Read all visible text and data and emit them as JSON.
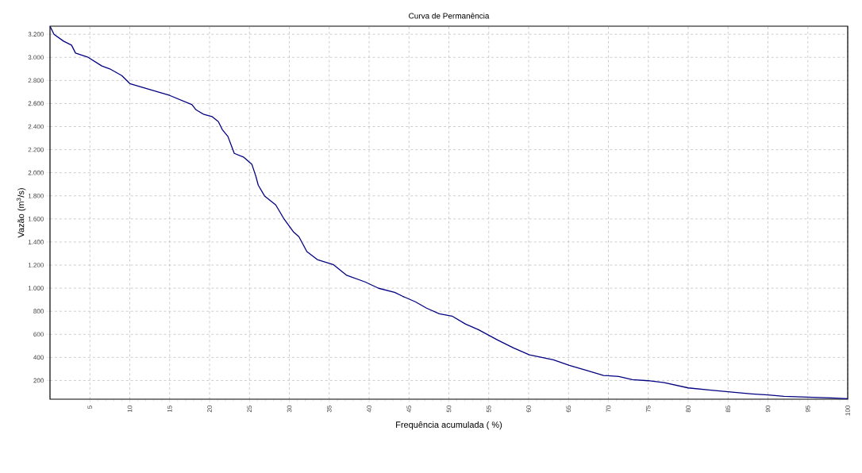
{
  "chart_data": {
    "type": "line",
    "title": "Curva de Permanência",
    "xlabel": "Frequência acumulada ( %)",
    "ylabel": "Vazão (m$^{3}$/s)",
    "series": [
      {
        "color": "#000080",
        "x": [
          0,
          0.5,
          1.7,
          2.7,
          3.2,
          4.7,
          6.5,
          7.5,
          9,
          10,
          11.6,
          15,
          17.8,
          18.3,
          19.3,
          20.3,
          21.1,
          21.6,
          22.3,
          23.1,
          24.3,
          25.3,
          25.8,
          26.1,
          26.9,
          28.3,
          29.3,
          30.5,
          31.2,
          32.2,
          33.5,
          35.5,
          37.2,
          39.5,
          41.2,
          43.2,
          44.2,
          45.8,
          47.2,
          48.8,
          50.4,
          52.1,
          53.7,
          56.1,
          58.1,
          60.1,
          63.1,
          65.1,
          67.4,
          69.4,
          71.3,
          73,
          75,
          77,
          80,
          82.6,
          85,
          88,
          90,
          92,
          94.9,
          97.9,
          100
        ],
        "values": [
          3270,
          3200,
          3140,
          3106,
          3037,
          3003,
          2925,
          2900,
          2842,
          2773,
          2739,
          2670,
          2590,
          2546,
          2505,
          2487,
          2443,
          2374,
          2315,
          2168,
          2134,
          2074,
          1971,
          1893,
          1799,
          1721,
          1604,
          1489,
          1446,
          1317,
          1248,
          1205,
          1111,
          1054,
          999,
          964,
          930,
          882,
          827,
          778,
          758,
          689,
          641,
          551,
          482,
          422,
          379,
          331,
          285,
          244,
          235,
          207,
          198,
          182,
          136,
          118,
          102,
          84,
          75,
          63,
          56,
          49,
          42
        ]
      }
    ],
    "xlim": [
      0,
      100
    ],
    "ylim": [
      38,
      3270
    ],
    "xticks": [
      5,
      10,
      15,
      20,
      25,
      30,
      35,
      40,
      45,
      50,
      55,
      60,
      65,
      70,
      75,
      80,
      85,
      90,
      95,
      100
    ],
    "yticks": [
      {
        "value": 200,
        "label": "200"
      },
      {
        "value": 400,
        "label": "400"
      },
      {
        "value": 600,
        "label": "600"
      },
      {
        "value": 800,
        "label": "800"
      },
      {
        "value": 1000,
        "label": "1.000"
      },
      {
        "value": 1200,
        "label": "1.200"
      },
      {
        "value": 1400,
        "label": "1.400"
      },
      {
        "value": 1600,
        "label": "1.600"
      },
      {
        "value": 1800,
        "label": "1.800"
      },
      {
        "value": 2000,
        "label": "2.000"
      },
      {
        "value": 2200,
        "label": "2.200"
      },
      {
        "value": 2400,
        "label": "2.400"
      },
      {
        "value": 2600,
        "label": "2.600"
      },
      {
        "value": 2800,
        "label": "2.800"
      },
      {
        "value": 3000,
        "label": "3.000"
      },
      {
        "value": 3200,
        "label": "3.200"
      }
    ],
    "grid": true,
    "marker": "none",
    "line_style": "solid"
  }
}
